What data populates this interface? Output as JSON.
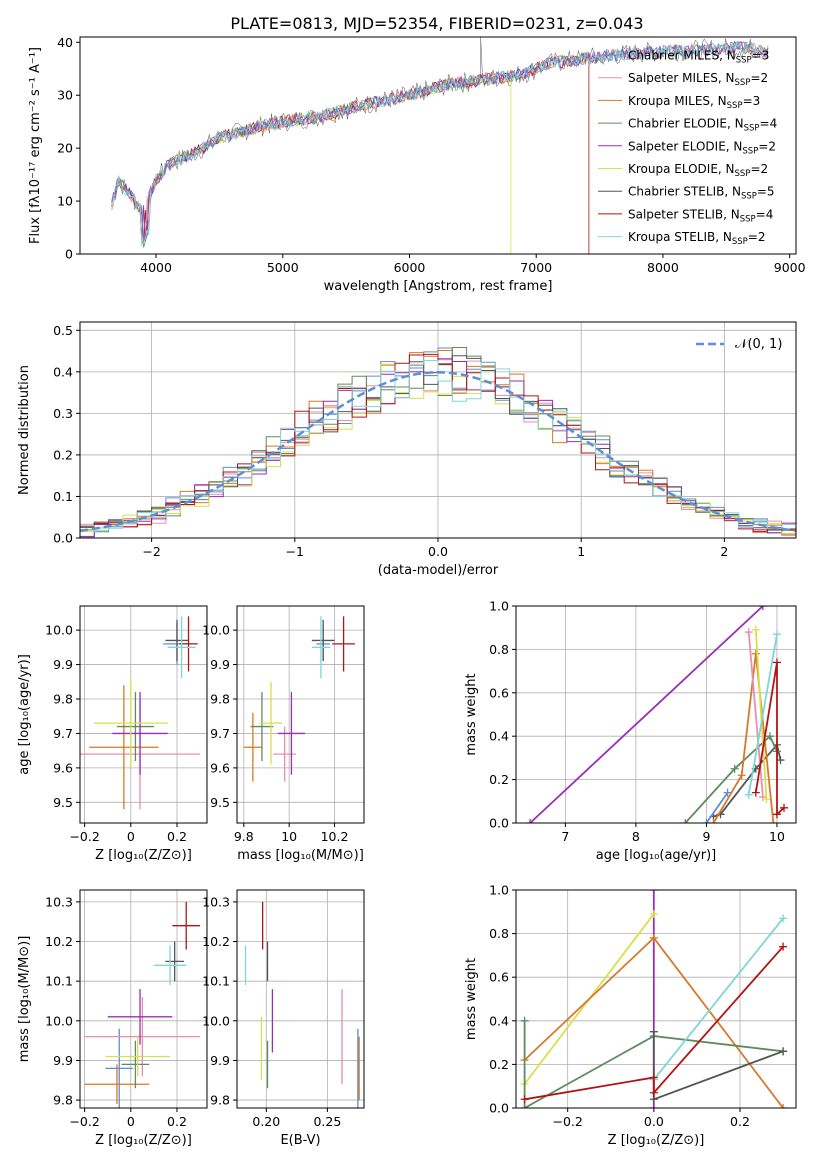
{
  "figure_title": "PLATE=0813, MJD=52354, FIBERID=0231, z=0.043",
  "colors": {
    "Chabrier MILES": "#5b8fd6",
    "Salpeter MILES": "#e88fb0",
    "Kroupa MILES": "#d9782a",
    "Chabrier ELODIE": "#5e8c5e",
    "Salpeter ELODIE": "#9a2fb5",
    "Kroupa ELODIE": "#d7e04a",
    "Chabrier STELIB": "#555555",
    "Salpeter STELIB": "#b01515",
    "Kroupa STELIB": "#7fd6d8"
  },
  "chart_data": [
    {
      "id": "spectrum",
      "type": "line",
      "xlabel": "wavelength [Angstrom, rest frame]",
      "ylabel": "Flux [fλ10⁻¹⁷ erg cm⁻² s⁻¹ A⁻¹]",
      "xlim": [
        3400,
        9050
      ],
      "ylim": [
        0,
        41
      ],
      "xticks": [
        4000,
        5000,
        6000,
        7000,
        8000,
        9000
      ],
      "yticks": [
        0,
        10,
        20,
        30,
        40
      ],
      "legend_location": "right",
      "continuum": {
        "x": [
          3650,
          3700,
          3800,
          3900,
          4000,
          4100,
          4300,
          4500,
          4800,
          5000,
          5300,
          5600,
          6000,
          6300,
          6600,
          6900,
          7100,
          7400,
          7800,
          8200,
          8600,
          8830
        ],
        "y": [
          9,
          14,
          11,
          8,
          14,
          17,
          19,
          22,
          24,
          25,
          26,
          28,
          30,
          32,
          33,
          34,
          36,
          37,
          38,
          38.5,
          39,
          38.5
        ]
      },
      "features": [
        {
          "name": "Salpeter STELIB",
          "x": 7420,
          "y": 0
        },
        {
          "name": "Kroupa ELODIE",
          "x": 6800,
          "y": 0
        },
        {
          "name": "Chabrier STELIB",
          "x": 6560,
          "y": 41
        }
      ],
      "series": [
        {
          "name": "Chabrier MILES",
          "label_main": "Chabrier MILES, N",
          "sub": "SSP",
          "value": "3"
        },
        {
          "name": "Salpeter MILES",
          "label_main": "Salpeter MILES, N",
          "sub": "SSP",
          "value": "2"
        },
        {
          "name": "Kroupa MILES",
          "label_main": "Kroupa MILES, N",
          "sub": "SSP",
          "value": "3"
        },
        {
          "name": "Chabrier ELODIE",
          "label_main": "Chabrier ELODIE, N",
          "sub": "SSP",
          "value": "4"
        },
        {
          "name": "Salpeter ELODIE",
          "label_main": "Salpeter ELODIE, N",
          "sub": "SSP",
          "value": "2"
        },
        {
          "name": "Kroupa ELODIE",
          "label_main": "Kroupa ELODIE, N",
          "sub": "SSP",
          "value": "2"
        },
        {
          "name": "Chabrier STELIB",
          "label_main": "Chabrier STELIB, N",
          "sub": "SSP",
          "value": "5"
        },
        {
          "name": "Salpeter STELIB",
          "label_main": "Salpeter STELIB, N",
          "sub": "SSP",
          "value": "4"
        },
        {
          "name": "Kroupa STELIB",
          "label_main": "Kroupa STELIB, N",
          "sub": "SSP",
          "value": "2"
        }
      ]
    },
    {
      "id": "residuals",
      "type": "bar",
      "xlabel": "(data-model)/error",
      "ylabel": "Normed distribution",
      "xlim": [
        -2.5,
        2.5
      ],
      "ylim": [
        0,
        0.52
      ],
      "xticks": [
        -2,
        -1,
        0,
        1,
        2
      ],
      "yticks": [
        0.0,
        0.1,
        0.2,
        0.3,
        0.4,
        0.5
      ],
      "grid": true,
      "legend_location": "top-right",
      "legend": [
        {
          "label": "𝒩(0, 1)",
          "style": "dashed",
          "color": "#5b8fd6"
        }
      ],
      "bin_width": 0.1
    },
    {
      "id": "age_vs_Z",
      "type": "scatter",
      "xlabel": "Z [log₁₀(Z/Z⊙)]",
      "ylabel": "age  [log₁₀(age/yr)]",
      "xlim": [
        -0.22,
        0.33
      ],
      "ylim": [
        9.44,
        10.07
      ],
      "xticks": [
        -0.2,
        0.0,
        0.2
      ],
      "yticks": [
        9.5,
        9.6,
        9.7,
        9.8,
        9.9,
        10.0
      ],
      "grid": true,
      "points": [
        {
          "name": "Chabrier MILES",
          "x": 0.2,
          "y": 9.96,
          "xerr": 0.06,
          "yerr": 0.06
        },
        {
          "name": "Salpeter MILES",
          "x": 0.04,
          "y": 9.64,
          "xerr": 0.26,
          "yerr": 0.16
        },
        {
          "name": "Kroupa MILES",
          "x": -0.03,
          "y": 9.66,
          "xerr": 0.15,
          "yerr": 0.18
        },
        {
          "name": "Chabrier ELODIE",
          "x": 0.02,
          "y": 9.72,
          "xerr": 0.08,
          "yerr": 0.1
        },
        {
          "name": "Salpeter ELODIE",
          "x": 0.04,
          "y": 9.7,
          "xerr": 0.12,
          "yerr": 0.12
        },
        {
          "name": "Kroupa ELODIE",
          "x": 0.0,
          "y": 9.73,
          "xerr": 0.16,
          "yerr": 0.13
        },
        {
          "name": "Chabrier STELIB",
          "x": 0.2,
          "y": 9.97,
          "xerr": 0.05,
          "yerr": 0.06
        },
        {
          "name": "Salpeter STELIB",
          "x": 0.25,
          "y": 9.96,
          "xerr": 0.04,
          "yerr": 0.08
        },
        {
          "name": "Kroupa STELIB",
          "x": 0.22,
          "y": 9.95,
          "xerr": 0.06,
          "yerr": 0.09
        }
      ]
    },
    {
      "id": "age_vs_mass",
      "type": "scatter",
      "xlabel": "mass [log₁₀(M/M⊙)]",
      "ylabel": "",
      "xlim": [
        9.77,
        10.33
      ],
      "ylim": [
        9.44,
        10.07
      ],
      "xticks": [
        9.8,
        10.0,
        10.2
      ],
      "yticks": [
        9.5,
        9.6,
        9.7,
        9.8,
        9.9,
        10.0
      ],
      "grid": true,
      "points": [
        {
          "name": "Chabrier MILES",
          "x": 10.15,
          "y": 9.96,
          "xerr": 0.03,
          "yerr": 0.05
        },
        {
          "name": "Salpeter MILES",
          "x": 9.98,
          "y": 9.64,
          "xerr": 0.05,
          "yerr": 0.08
        },
        {
          "name": "Kroupa MILES",
          "x": 9.84,
          "y": 9.66,
          "xerr": 0.04,
          "yerr": 0.1
        },
        {
          "name": "Chabrier ELODIE",
          "x": 9.88,
          "y": 9.72,
          "xerr": 0.05,
          "yerr": 0.1
        },
        {
          "name": "Salpeter ELODIE",
          "x": 10.01,
          "y": 9.7,
          "xerr": 0.06,
          "yerr": 0.12
        },
        {
          "name": "Kroupa ELODIE",
          "x": 9.92,
          "y": 9.73,
          "xerr": 0.05,
          "yerr": 0.12
        },
        {
          "name": "Chabrier STELIB",
          "x": 10.15,
          "y": 9.97,
          "xerr": 0.05,
          "yerr": 0.06
        },
        {
          "name": "Salpeter STELIB",
          "x": 10.24,
          "y": 9.96,
          "xerr": 0.05,
          "yerr": 0.08
        },
        {
          "name": "Kroupa STELIB",
          "x": 10.14,
          "y": 9.95,
          "xerr": 0.04,
          "yerr": 0.09
        }
      ]
    },
    {
      "id": "weight_vs_age",
      "type": "line",
      "xlabel": "age  [log₁₀(age/yr)]",
      "ylabel": "mass weight",
      "xlim": [
        6.3,
        10.27
      ],
      "ylim": [
        0,
        1.0
      ],
      "xticks": [
        7,
        8,
        9,
        10
      ],
      "yticks": [
        0.0,
        0.2,
        0.4,
        0.6,
        0.8,
        1.0
      ],
      "grid": true,
      "series": [
        {
          "name": "Salpeter ELODIE",
          "x": [
            6.5,
            9.8
          ],
          "y": [
            0.0,
            1.0
          ]
        },
        {
          "name": "Chabrier STELIB",
          "x": [
            9.1,
            9.2,
            9.7,
            10.0,
            10.05
          ],
          "y": [
            0.03,
            0.04,
            0.25,
            0.36,
            0.29
          ]
        },
        {
          "name": "Chabrier ELODIE",
          "x": [
            8.7,
            9.4,
            9.9,
            10.0
          ],
          "y": [
            0.0,
            0.25,
            0.4,
            0.33
          ]
        },
        {
          "name": "Kroupa MILES",
          "x": [
            9.1,
            9.5,
            9.7,
            9.95
          ],
          "y": [
            0.0,
            0.22,
            0.78,
            0.0
          ]
        },
        {
          "name": "Salpeter MILES",
          "x": [
            9.6,
            9.8
          ],
          "y": [
            0.88,
            0.12
          ]
        },
        {
          "name": "Kroupa ELODIE",
          "x": [
            9.7,
            9.85
          ],
          "y": [
            0.89,
            0.11
          ]
        },
        {
          "name": "Kroupa STELIB",
          "x": [
            9.6,
            10.0
          ],
          "y": [
            0.13,
            0.87
          ]
        },
        {
          "name": "Salpeter STELIB",
          "x": [
            9.7,
            10.0,
            10.0,
            10.1
          ],
          "y": [
            0.14,
            0.74,
            0.04,
            0.07
          ]
        },
        {
          "name": "Chabrier MILES",
          "x": [
            9.0,
            9.3
          ],
          "y": [
            0.0,
            0.14
          ]
        }
      ]
    },
    {
      "id": "mass_vs_Z",
      "type": "scatter",
      "xlabel": "Z [log₁₀(Z/Z⊙)]",
      "ylabel": "mass [log₁₀(M/M⊙)]",
      "xlim": [
        -0.22,
        0.33
      ],
      "ylim": [
        9.78,
        10.33
      ],
      "xticks": [
        -0.2,
        0.0,
        0.2
      ],
      "yticks": [
        9.8,
        9.9,
        10.0,
        10.1,
        10.2,
        10.3
      ],
      "grid": true,
      "points": [
        {
          "name": "Chabrier MILES",
          "x": -0.05,
          "y": 9.88,
          "xerr": 0.06,
          "yerr": 0.1
        },
        {
          "name": "Salpeter MILES",
          "x": 0.05,
          "y": 9.96,
          "xerr": 0.25,
          "yerr": 0.1
        },
        {
          "name": "Kroupa MILES",
          "x": -0.06,
          "y": 9.84,
          "xerr": 0.14,
          "yerr": 0.05
        },
        {
          "name": "Chabrier ELODIE",
          "x": 0.02,
          "y": 9.89,
          "xerr": 0.06,
          "yerr": 0.06
        },
        {
          "name": "Salpeter ELODIE",
          "x": 0.04,
          "y": 10.01,
          "xerr": 0.14,
          "yerr": 0.07
        },
        {
          "name": "Kroupa ELODIE",
          "x": 0.03,
          "y": 9.91,
          "xerr": 0.14,
          "yerr": 0.05
        },
        {
          "name": "Chabrier STELIB",
          "x": 0.19,
          "y": 10.15,
          "xerr": 0.04,
          "yerr": 0.05
        },
        {
          "name": "Salpeter STELIB",
          "x": 0.24,
          "y": 10.24,
          "xerr": 0.06,
          "yerr": 0.06
        },
        {
          "name": "Kroupa STELIB",
          "x": 0.17,
          "y": 10.14,
          "xerr": 0.07,
          "yerr": 0.05
        }
      ]
    },
    {
      "id": "mass_vs_ebv",
      "type": "scatter",
      "xlabel": "E(B-V)",
      "ylabel": "",
      "xlim": [
        0.176,
        0.28
      ],
      "ylim": [
        9.78,
        10.33
      ],
      "xticks": [
        0.2,
        0.25
      ],
      "yticks": [
        9.8,
        9.9,
        10.0,
        10.1,
        10.2,
        10.3
      ],
      "grid": true,
      "points": [
        {
          "name": "Chabrier MILES",
          "x": 0.275,
          "y": 9.88,
          "xerr": 0.0,
          "yerr": 0.1
        },
        {
          "name": "Salpeter MILES",
          "x": 0.262,
          "y": 9.96,
          "xerr": 0.0,
          "yerr": 0.12
        },
        {
          "name": "Kroupa MILES",
          "x": 0.276,
          "y": 9.88,
          "xerr": 0.0,
          "yerr": 0.08
        },
        {
          "name": "Chabrier ELODIE",
          "x": 0.201,
          "y": 9.89,
          "xerr": 0.0,
          "yerr": 0.06
        },
        {
          "name": "Salpeter ELODIE",
          "x": 0.205,
          "y": 10.0,
          "xerr": 0.0,
          "yerr": 0.08
        },
        {
          "name": "Kroupa ELODIE",
          "x": 0.196,
          "y": 9.93,
          "xerr": 0.0,
          "yerr": 0.08
        },
        {
          "name": "Chabrier STELIB",
          "x": 0.201,
          "y": 10.15,
          "xerr": 0.0,
          "yerr": 0.05
        },
        {
          "name": "Salpeter STELIB",
          "x": 0.197,
          "y": 10.24,
          "xerr": 0.0,
          "yerr": 0.06
        },
        {
          "name": "Kroupa STELIB",
          "x": 0.183,
          "y": 10.14,
          "xerr": 0.0,
          "yerr": 0.05
        }
      ]
    },
    {
      "id": "weight_vs_Z",
      "type": "line",
      "xlabel": "Z [log₁₀(Z/Z⊙)]",
      "ylabel": "mass weight",
      "xlim": [
        -0.32,
        0.33
      ],
      "ylim": [
        0,
        1.0
      ],
      "xticks": [
        -0.2,
        0.0,
        0.2
      ],
      "yticks": [
        0.0,
        0.2,
        0.4,
        0.6,
        0.8,
        1.0
      ],
      "grid": true,
      "series": [
        {
          "name": "Salpeter ELODIE",
          "x": [
            0.0,
            0.0
          ],
          "y": [
            0.0,
            1.0
          ]
        },
        {
          "name": "Kroupa ELODIE",
          "x": [
            -0.3,
            0.0
          ],
          "y": [
            0.11,
            0.89
          ]
        },
        {
          "name": "Kroupa MILES",
          "x": [
            -0.3,
            0.0,
            0.3
          ],
          "y": [
            0.22,
            0.78,
            0.0
          ]
        },
        {
          "name": "Chabrier ELODIE",
          "x": [
            -0.3,
            -0.3,
            0.0,
            0.3
          ],
          "y": [
            0.4,
            0.0,
            0.33,
            0.26
          ]
        },
        {
          "name": "Chabrier STELIB",
          "x": [
            0.0,
            0.0,
            0.3
          ],
          "y": [
            0.35,
            0.04,
            0.26
          ]
        },
        {
          "name": "Kroupa STELIB",
          "x": [
            0.0,
            0.3
          ],
          "y": [
            0.13,
            0.87
          ]
        },
        {
          "name": "Salpeter STELIB",
          "x": [
            -0.3,
            0.0,
            0.0,
            0.3
          ],
          "y": [
            0.04,
            0.14,
            0.07,
            0.74
          ]
        }
      ]
    }
  ]
}
